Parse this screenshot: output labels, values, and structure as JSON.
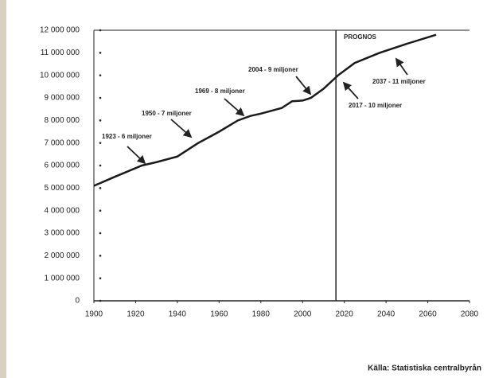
{
  "chart_data": {
    "type": "line",
    "x": [
      1900,
      1910,
      1923,
      1930,
      1940,
      1945,
      1950,
      1960,
      1969,
      1975,
      1980,
      1990,
      1995,
      2000,
      2004,
      2010,
      2017,
      2025,
      2037,
      2050,
      2064
    ],
    "series": [
      {
        "color": "#1a1a1a",
        "values": [
          5100000,
          5500000,
          6000000,
          6150000,
          6400000,
          6700000,
          7000000,
          7500000,
          8000000,
          8200000,
          8300000,
          8550000,
          8850000,
          8880000,
          9000000,
          9400000,
          10000000,
          10550000,
          11000000,
          11400000,
          11800000
        ]
      }
    ],
    "xlim": [
      1900,
      2080
    ],
    "xticks": [
      1900,
      1920,
      1940,
      1960,
      1980,
      2000,
      2020,
      2040,
      2060,
      2080
    ],
    "ylim": [
      0,
      12000000
    ],
    "yticks": [
      0,
      {
        "value": 1000000,
        "label": "1 000 000"
      },
      {
        "value": 2000000,
        "label": "2 000 000"
      },
      {
        "value": 3000000,
        "label": "3 000 000"
      },
      {
        "value": 4000000,
        "label": "4 000 000"
      },
      {
        "value": 5000000,
        "label": "5 000 000"
      },
      {
        "value": 6000000,
        "label": "6 000 000"
      },
      {
        "value": 7000000,
        "label": "7 000 000"
      },
      {
        "value": 8000000,
        "label": "8 000 000"
      },
      {
        "value": 9000000,
        "label": "9 000 000"
      },
      {
        "value": 10000000,
        "label": "10 000 000"
      },
      {
        "value": 11000000,
        "label": "11 000 000"
      },
      {
        "value": 12000000,
        "label": "12 000 000"
      }
    ],
    "prognos_x": 2016,
    "annotations": [
      "1923 - 6 miljoner",
      "1950 - 7 miljoner",
      "1969 - 8 miljoner",
      "2004 - 9 miljoner",
      "2017 - 10 miljoner",
      "2037 - 11 miljoner",
      "PROGNOS"
    ],
    "source": "Källa: Statistiska centralbyrån"
  }
}
